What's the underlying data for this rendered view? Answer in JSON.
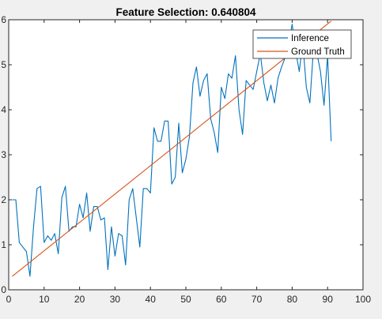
{
  "chart_data": {
    "type": "line",
    "title": "Feature Selection: 0.640804",
    "xlabel": "",
    "ylabel": "",
    "xlim": [
      0,
      100
    ],
    "ylim": [
      0,
      6
    ],
    "xticks": [
      0,
      10,
      20,
      30,
      40,
      50,
      60,
      70,
      80,
      90,
      100
    ],
    "yticks": [
      0,
      1,
      2,
      3,
      4,
      5,
      6
    ],
    "grid": false,
    "legend_position": "top-right",
    "series": [
      {
        "name": "Inference",
        "color": "#0072BD",
        "x": [
          1,
          2,
          3,
          4,
          5,
          6,
          7,
          8,
          9,
          10,
          11,
          12,
          13,
          14,
          15,
          16,
          17,
          18,
          19,
          20,
          21,
          22,
          23,
          24,
          25,
          26,
          27,
          28,
          29,
          30,
          31,
          32,
          33,
          34,
          35,
          36,
          37,
          38,
          39,
          40,
          41,
          42,
          43,
          44,
          45,
          46,
          47,
          48,
          49,
          50,
          51,
          52,
          53,
          54,
          55,
          56,
          57,
          58,
          59,
          60,
          61,
          62,
          63,
          64,
          65,
          66,
          67,
          68,
          69,
          70,
          71,
          72,
          73,
          74,
          75,
          76,
          77,
          78,
          79,
          80,
          81,
          82,
          83,
          84,
          85,
          86,
          87,
          88,
          89,
          90,
          91
        ],
        "values": [
          2.0,
          2.0,
          1.05,
          0.95,
          0.85,
          0.3,
          1.4,
          2.25,
          2.3,
          1.05,
          1.2,
          1.1,
          1.25,
          0.8,
          2.05,
          2.3,
          1.3,
          1.4,
          1.4,
          1.9,
          1.6,
          2.15,
          1.3,
          1.85,
          1.85,
          1.55,
          1.6,
          0.45,
          1.4,
          0.75,
          1.25,
          1.2,
          0.55,
          2.0,
          2.25,
          1.6,
          0.95,
          2.25,
          2.25,
          2.15,
          3.6,
          3.3,
          3.3,
          3.75,
          3.75,
          2.35,
          2.5,
          3.7,
          2.6,
          2.9,
          3.4,
          4.6,
          4.95,
          4.3,
          4.65,
          4.8,
          3.8,
          3.5,
          3.05,
          4.5,
          4.25,
          4.8,
          4.7,
          5.2,
          4.0,
          3.45,
          4.65,
          4.55,
          4.45,
          4.85,
          5.25,
          4.6,
          4.2,
          4.55,
          4.15,
          4.7,
          4.95,
          5.15,
          5.45,
          5.9,
          5.3,
          4.85,
          5.5,
          4.5,
          4.15,
          5.35,
          5.25,
          4.85,
          4.1,
          5.2,
          3.3
        ]
      },
      {
        "name": "Ground Truth",
        "color": "#D95319",
        "x": [
          1,
          91
        ],
        "values": [
          0.3,
          5.97
        ]
      }
    ]
  }
}
